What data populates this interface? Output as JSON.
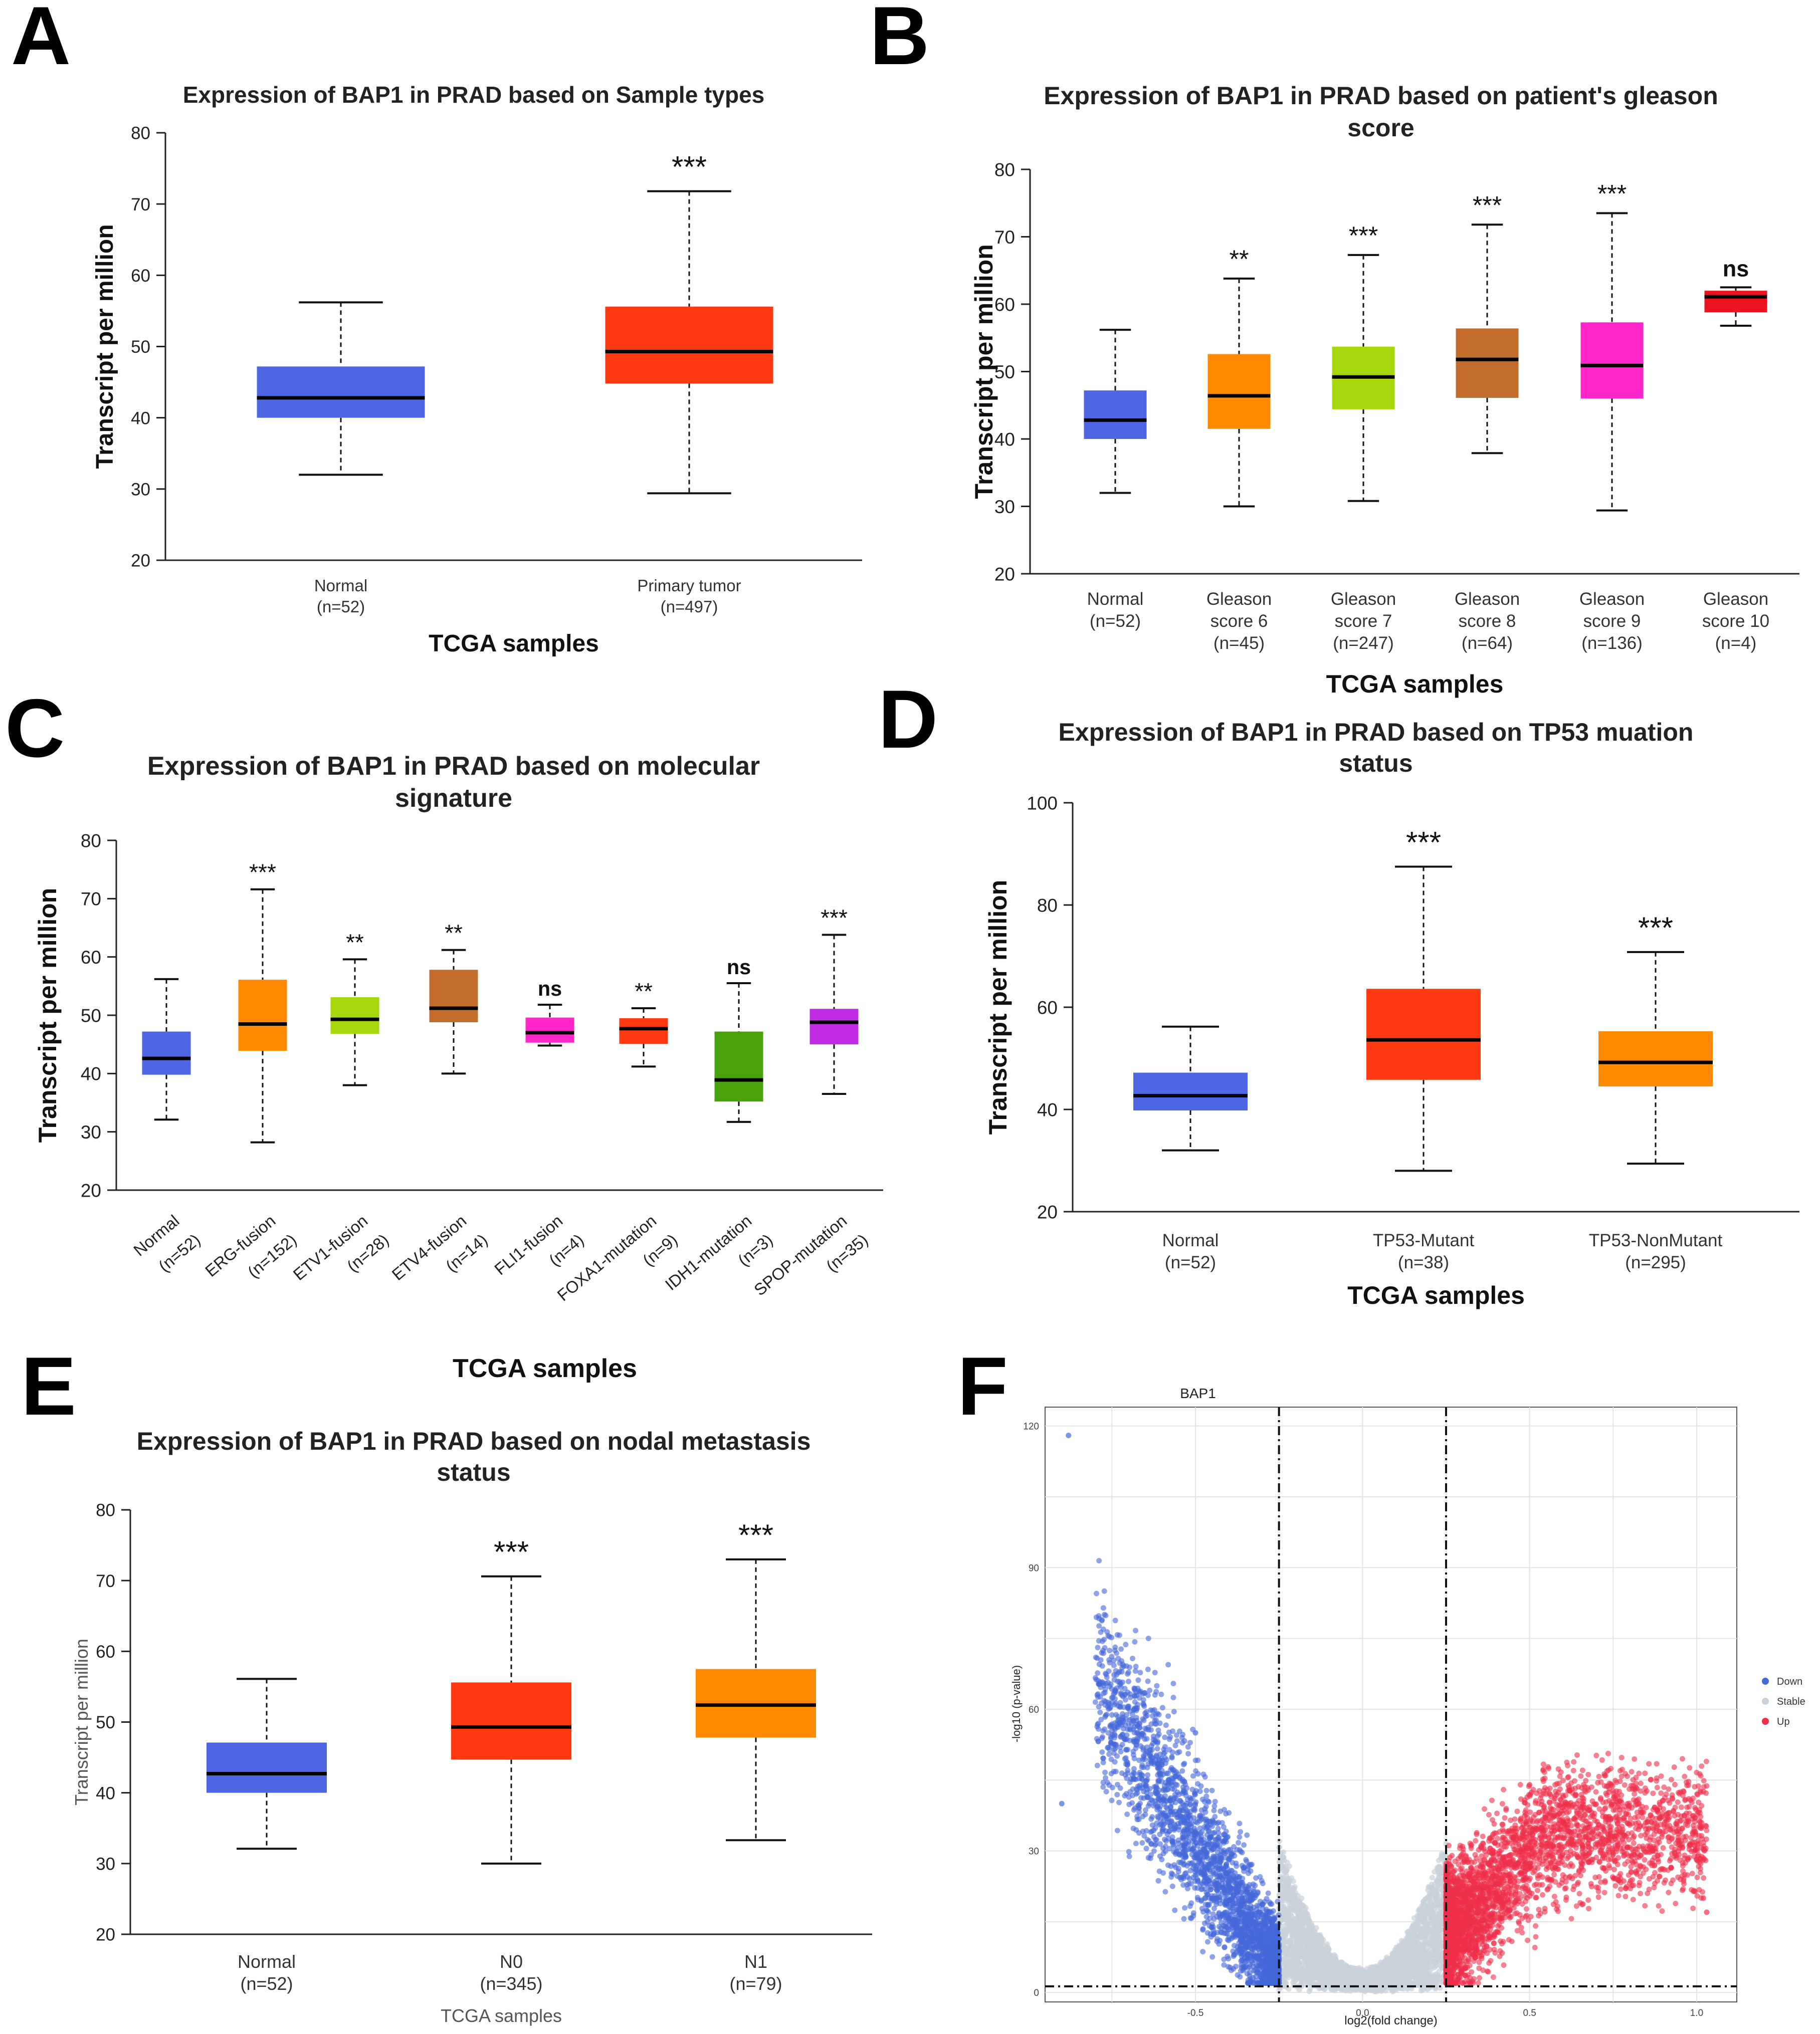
{
  "panel_letters": [
    "A",
    "B",
    "C",
    "D",
    "E",
    "F"
  ],
  "colors": {
    "normal": "#4f66e4",
    "red": "#ff3a12",
    "orange": "#ff8a00",
    "lime": "#a6d60c",
    "brown": "#c26d2c",
    "magenta": "#ff25c8",
    "crimson": "#ec1320",
    "green": "#49a10b",
    "purple": "#c02be4",
    "down": "#4468d8",
    "stable": "#c9d2da",
    "up": "#ef2f4a"
  },
  "chart_data": [
    {
      "panel": "A",
      "type": "box",
      "title_lines": [
        "Expression of BAP1 in PRAD based on Sample types"
      ],
      "ylabel": "Transcript per million",
      "xlabel": "TCGA samples",
      "ylim": [
        20,
        80
      ],
      "yticks": [
        20,
        30,
        40,
        50,
        60,
        70,
        80
      ],
      "groups": [
        {
          "label": "Normal",
          "n": "(n=52)",
          "min": 32,
          "q1": 40,
          "median": 42.8,
          "q3": 47.2,
          "max": 56.2,
          "sig": "",
          "color": "normal"
        },
        {
          "label": "Primary tumor",
          "n": "(n=497)",
          "min": 29.4,
          "q1": 44.8,
          "median": 49.3,
          "q3": 55.6,
          "max": 71.8,
          "sig": "***",
          "color": "red"
        }
      ]
    },
    {
      "panel": "B",
      "type": "box",
      "title_lines": [
        "Expression of BAP1 in PRAD based on patient's gleason",
        "score"
      ],
      "ylabel": "Transcript per million",
      "xlabel": "TCGA samples",
      "ylim": [
        20,
        80
      ],
      "yticks": [
        20,
        30,
        40,
        50,
        60,
        70,
        80
      ],
      "groups": [
        {
          "label": "Normal",
          "label2": "",
          "n": "(n=52)",
          "min": 32,
          "q1": 40,
          "median": 42.8,
          "q3": 47.2,
          "max": 56.2,
          "sig": "",
          "color": "normal"
        },
        {
          "label": "Gleason",
          "label2": "score 6",
          "n": "(n=45)",
          "min": 30,
          "q1": 41.5,
          "median": 46.4,
          "q3": 52.6,
          "max": 63.8,
          "sig": "**",
          "color": "orange"
        },
        {
          "label": "Gleason",
          "label2": "score 7",
          "n": "(n=247)",
          "min": 30.8,
          "q1": 44.4,
          "median": 49.2,
          "q3": 53.7,
          "max": 67.3,
          "sig": "***",
          "color": "lime"
        },
        {
          "label": "Gleason",
          "label2": "score 8",
          "n": "(n=64)",
          "min": 37.9,
          "q1": 46.1,
          "median": 51.8,
          "q3": 56.4,
          "max": 71.8,
          "sig": "***",
          "color": "brown"
        },
        {
          "label": "Gleason",
          "label2": "score 9",
          "n": "(n=136)",
          "min": 29.4,
          "q1": 46,
          "median": 50.9,
          "q3": 57.3,
          "max": 73.5,
          "sig": "***",
          "color": "magenta"
        },
        {
          "label": "Gleason",
          "label2": "score 10",
          "n": "(n=4)",
          "min": 56.8,
          "q1": 58.8,
          "median": 61.1,
          "q3": 62,
          "max": 62.5,
          "sig": "ns",
          "color": "crimson"
        }
      ]
    },
    {
      "panel": "C",
      "type": "box",
      "title_lines": [
        "Expression of BAP1 in PRAD based on molecular",
        "signature"
      ],
      "ylabel": "Transcript per million",
      "xlabel": "TCGA samples",
      "ylim": [
        20,
        80
      ],
      "yticks": [
        20,
        30,
        40,
        50,
        60,
        70,
        80
      ],
      "groups": [
        {
          "label": "Normal",
          "n": "(n=52)",
          "min": 32.1,
          "q1": 39.8,
          "median": 42.6,
          "q3": 47.2,
          "max": 56.2,
          "sig": "",
          "color": "normal"
        },
        {
          "label": "ERG-fusion",
          "n": "(n=152)",
          "min": 28.2,
          "q1": 43.9,
          "median": 48.5,
          "q3": 56.1,
          "max": 71.6,
          "sig": "***",
          "color": "orange"
        },
        {
          "label": "ETV1-fusion",
          "n": "(n=28)",
          "min": 38,
          "q1": 46.8,
          "median": 49.3,
          "q3": 53.1,
          "max": 59.6,
          "sig": "**",
          "color": "lime"
        },
        {
          "label": "ETV4-fusion",
          "n": "(n=14)",
          "min": 40,
          "q1": 48.8,
          "median": 51.2,
          "q3": 57.8,
          "max": 61.2,
          "sig": "**",
          "color": "brown"
        },
        {
          "label": "FLI1-fusion",
          "n": "(n=4)",
          "min": 44.8,
          "q1": 45.3,
          "median": 47,
          "q3": 49.6,
          "max": 51.8,
          "sig": "ns",
          "color": "magenta"
        },
        {
          "label": "FOXA1-mutation",
          "n": "(n=9)",
          "min": 41.2,
          "q1": 45.1,
          "median": 47.7,
          "q3": 49.5,
          "max": 51.2,
          "sig": "**",
          "color": "red"
        },
        {
          "label": "IDH1-mutation",
          "n": "(n=3)",
          "min": 31.7,
          "q1": 35.2,
          "median": 38.9,
          "q3": 47.2,
          "max": 55.5,
          "sig": "ns",
          "color": "green"
        },
        {
          "label": "SPOP-mutation",
          "n": "(n=35)",
          "min": 36.5,
          "q1": 45,
          "median": 48.8,
          "q3": 51.1,
          "max": 63.8,
          "sig": "***",
          "color": "purple"
        }
      ]
    },
    {
      "panel": "D",
      "type": "box",
      "title_lines": [
        "Expression of BAP1 in PRAD based on TP53 muation",
        "status"
      ],
      "ylabel": "Transcript per million",
      "xlabel": "TCGA samples",
      "ylim": [
        20,
        100
      ],
      "yticks": [
        20,
        40,
        60,
        80,
        100
      ],
      "groups": [
        {
          "label": "Normal",
          "n": "(n=52)",
          "min": 32,
          "q1": 39.8,
          "median": 42.7,
          "q3": 47.2,
          "max": 56.2,
          "sig": "",
          "color": "normal"
        },
        {
          "label": "TP53-Mutant",
          "n": "(n=38)",
          "min": 28,
          "q1": 45.8,
          "median": 53.6,
          "q3": 63.6,
          "max": 87.5,
          "sig": "***",
          "color": "red"
        },
        {
          "label": "TP53-NonMutant",
          "n": "(n=295)",
          "min": 29.4,
          "q1": 44.5,
          "median": 49.2,
          "q3": 55.3,
          "max": 70.8,
          "sig": "***",
          "color": "orange"
        }
      ]
    },
    {
      "panel": "E",
      "type": "box",
      "title_lines": [
        "Expression of BAP1 in PRAD based on nodal metastasis",
        "status"
      ],
      "ylabel": "Transcript per million",
      "xlabel": "TCGA samples",
      "ylim": [
        20,
        80
      ],
      "yticks": [
        20,
        30,
        40,
        50,
        60,
        70,
        80
      ],
      "groups": [
        {
          "label": "Normal",
          "n": "(n=52)",
          "min": 32.1,
          "q1": 40,
          "median": 42.7,
          "q3": 47.1,
          "max": 56.1,
          "sig": "",
          "color": "normal"
        },
        {
          "label": "N0",
          "n": "(n=345)",
          "min": 30,
          "q1": 44.7,
          "median": 49.3,
          "q3": 55.6,
          "max": 70.6,
          "sig": "***",
          "color": "red"
        },
        {
          "label": "N1",
          "n": "(n=79)",
          "min": 33.3,
          "q1": 47.8,
          "median": 52.4,
          "q3": 57.5,
          "max": 73,
          "sig": "***",
          "color": "orange"
        }
      ]
    },
    {
      "panel": "F",
      "type": "scatter",
      "title": "BAP1",
      "xlabel": "log2(fold change)",
      "ylabel": "-log10 (p-value)",
      "xlim": [
        -0.95,
        1.12
      ],
      "ylim": [
        -2,
        124
      ],
      "xticks": [
        -0.5,
        0.0,
        0.5,
        1.0
      ],
      "xtick_labels": [
        "-0.5",
        "0.0",
        "0.5",
        "1.0"
      ],
      "yticks": [
        0,
        30,
        60,
        90,
        120
      ],
      "ytick_labels": [
        "0",
        "30",
        "60",
        "90",
        "120"
      ],
      "thresholds": {
        "x": [
          -0.25,
          0.25
        ],
        "y": 1.3
      },
      "legend": [
        "Down",
        "Stable",
        "Up"
      ],
      "outliers": [
        {
          "x": -0.88,
          "y": 118,
          "group": "Down"
        },
        {
          "x": -0.5,
          "y": 55,
          "group": "Down"
        },
        {
          "x": 0.5,
          "y": 44,
          "group": "Up"
        },
        {
          "x": 1.02,
          "y": 20,
          "group": "Up"
        },
        {
          "x": 1.03,
          "y": 17,
          "group": "Up"
        },
        {
          "x": -0.9,
          "y": 40,
          "group": "Down"
        }
      ],
      "point_counts": {
        "Down": 2600,
        "Stable": 3200,
        "Up": 3300
      }
    }
  ]
}
